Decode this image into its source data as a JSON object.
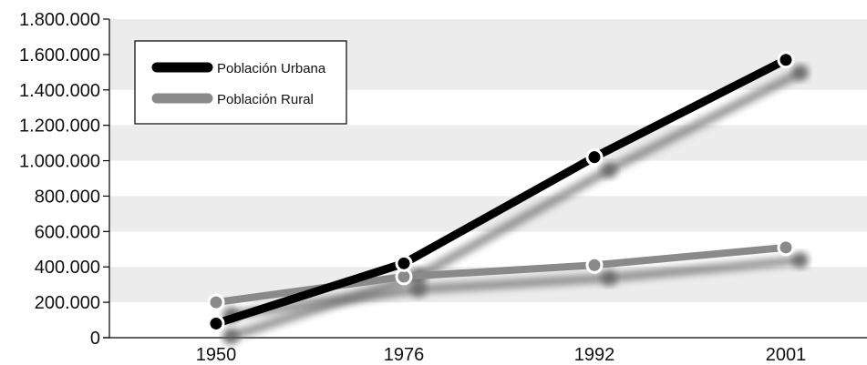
{
  "chart_data": {
    "type": "line",
    "title": "",
    "xlabel": "",
    "ylabel": "",
    "categories": [
      "1950",
      "1976",
      "1992",
      "2001"
    ],
    "ylim": [
      0,
      1800000
    ],
    "yticks": [
      0,
      200000,
      400000,
      600000,
      800000,
      1000000,
      1200000,
      1400000,
      1600000,
      1800000
    ],
    "ytick_labels": [
      "0",
      "200.000",
      "400.000",
      "600.000",
      "800.000",
      "1.000.000",
      "1.200.000",
      "1.400.000",
      "1.600.000",
      "1.800.000"
    ],
    "grid": "alternating horizontal bands",
    "legend_position": "top-left",
    "series": [
      {
        "name": "Población Urbana",
        "color": "#000000",
        "values": [
          80000,
          420000,
          1020000,
          1570000
        ]
      },
      {
        "name": "Población Rural",
        "color": "#8a8a8a",
        "values": [
          200000,
          345000,
          410000,
          510000
        ]
      }
    ],
    "band_color": "#ececec"
  }
}
